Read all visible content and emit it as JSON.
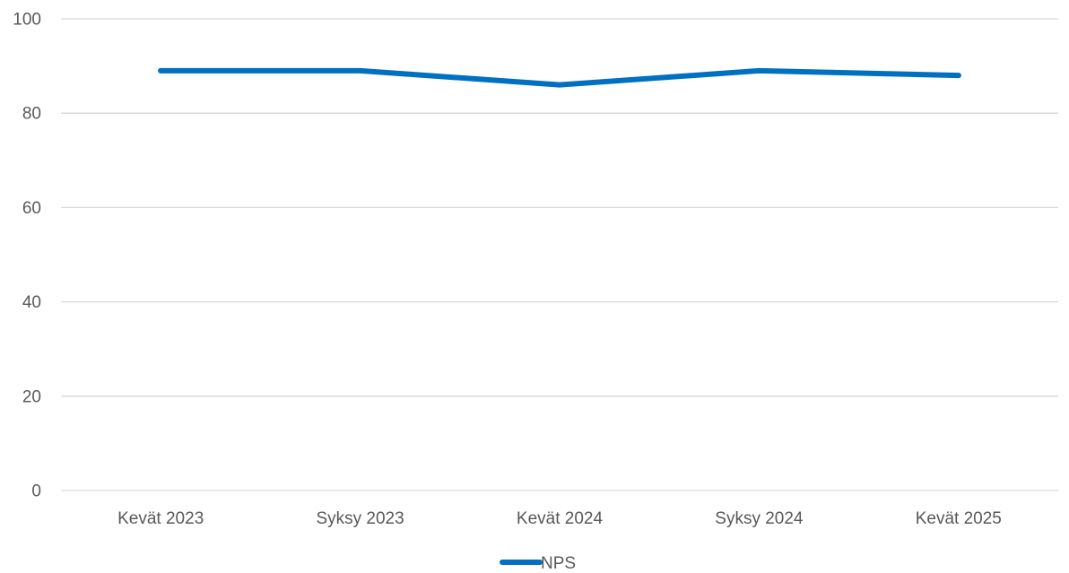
{
  "chart_data": {
    "type": "line",
    "categories": [
      "Kevät 2023",
      "Syksy 2023",
      "Kevät 2024",
      "Syksy 2024",
      "Kevät 2025"
    ],
    "series": [
      {
        "name": "NPS",
        "values": [
          89,
          89,
          86,
          89,
          88
        ],
        "color": "#0070c0"
      }
    ],
    "ylim": [
      0,
      100
    ],
    "yticks": [
      0,
      20,
      40,
      60,
      80,
      100
    ],
    "ytick_labels": [
      "0",
      "20",
      "40",
      "60",
      "80",
      "100"
    ],
    "grid": true,
    "legend_position": "bottom",
    "title": "",
    "xlabel": "",
    "ylabel": ""
  }
}
